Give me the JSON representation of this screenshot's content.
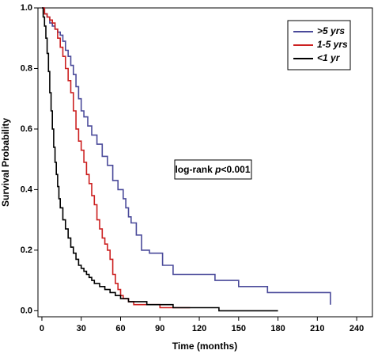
{
  "chart_data": {
    "type": "line",
    "step": true,
    "xlabel": "Time (months)",
    "ylabel": "Survival Probability",
    "xlim": [
      -3,
      252
    ],
    "ylim": [
      -0.02,
      1.0
    ],
    "x_ticks": [
      0,
      30,
      60,
      90,
      120,
      150,
      180,
      210,
      240
    ],
    "y_ticks": [
      0.0,
      0.2,
      0.4,
      0.6,
      0.8,
      1.0
    ],
    "y_tick_labels": [
      "0.0",
      "0.2",
      "0.4",
      "0.6",
      "0.8",
      "1.0"
    ],
    "legend_position": "top-right",
    "series": [
      {
        "name": ">5 yrs",
        "color": "#4a4a9a",
        "x": [
          0,
          2,
          4,
          6,
          8,
          10,
          12,
          14,
          16,
          18,
          20,
          22,
          24,
          26,
          28,
          30,
          32,
          35,
          38,
          42,
          46,
          50,
          54,
          58,
          62,
          64,
          66,
          68,
          72,
          76,
          82,
          92,
          100,
          116,
          132,
          150,
          172,
          220
        ],
        "y": [
          1.0,
          0.98,
          0.97,
          0.95,
          0.94,
          0.93,
          0.92,
          0.91,
          0.89,
          0.86,
          0.84,
          0.81,
          0.78,
          0.74,
          0.7,
          0.66,
          0.64,
          0.61,
          0.58,
          0.55,
          0.51,
          0.48,
          0.43,
          0.4,
          0.37,
          0.34,
          0.31,
          0.29,
          0.25,
          0.2,
          0.19,
          0.15,
          0.12,
          0.12,
          0.1,
          0.08,
          0.06,
          0.02
        ]
      },
      {
        "name": "1-5 yrs",
        "color": "#cc2020",
        "x": [
          0,
          2,
          4,
          6,
          8,
          10,
          12,
          14,
          16,
          18,
          20,
          22,
          24,
          26,
          28,
          30,
          32,
          34,
          36,
          38,
          40,
          42,
          44,
          46,
          48,
          50,
          52,
          54,
          56,
          58,
          60,
          62,
          66,
          70,
          80,
          90,
          100,
          113
        ],
        "y": [
          1.0,
          0.98,
          0.97,
          0.96,
          0.95,
          0.93,
          0.9,
          0.87,
          0.84,
          0.8,
          0.76,
          0.72,
          0.66,
          0.6,
          0.56,
          0.53,
          0.49,
          0.45,
          0.42,
          0.38,
          0.35,
          0.3,
          0.27,
          0.24,
          0.22,
          0.2,
          0.17,
          0.12,
          0.09,
          0.07,
          0.05,
          0.04,
          0.03,
          0.02,
          0.02,
          0.01,
          0.01,
          0.01
        ]
      },
      {
        "name": "<1 yr",
        "color": "#000000",
        "x": [
          0,
          1,
          2,
          3,
          4,
          5,
          6,
          7,
          8,
          9,
          10,
          11,
          12,
          13,
          14,
          16,
          18,
          20,
          22,
          24,
          26,
          28,
          30,
          32,
          34,
          36,
          38,
          40,
          44,
          48,
          52,
          56,
          60,
          66,
          72,
          80,
          90,
          100,
          110,
          120,
          135,
          150,
          165,
          180
        ],
        "y": [
          1.0,
          0.97,
          0.94,
          0.9,
          0.85,
          0.79,
          0.72,
          0.66,
          0.6,
          0.54,
          0.49,
          0.45,
          0.41,
          0.37,
          0.34,
          0.3,
          0.27,
          0.24,
          0.21,
          0.19,
          0.17,
          0.15,
          0.14,
          0.13,
          0.12,
          0.11,
          0.1,
          0.09,
          0.08,
          0.07,
          0.06,
          0.05,
          0.04,
          0.03,
          0.03,
          0.02,
          0.02,
          0.01,
          0.01,
          0.01,
          0.0,
          0.0,
          0.0,
          0.0
        ]
      }
    ],
    "annotation": {
      "prefix": "log-rank ",
      "p_symbol": "p",
      "suffix": "<0.001"
    }
  }
}
